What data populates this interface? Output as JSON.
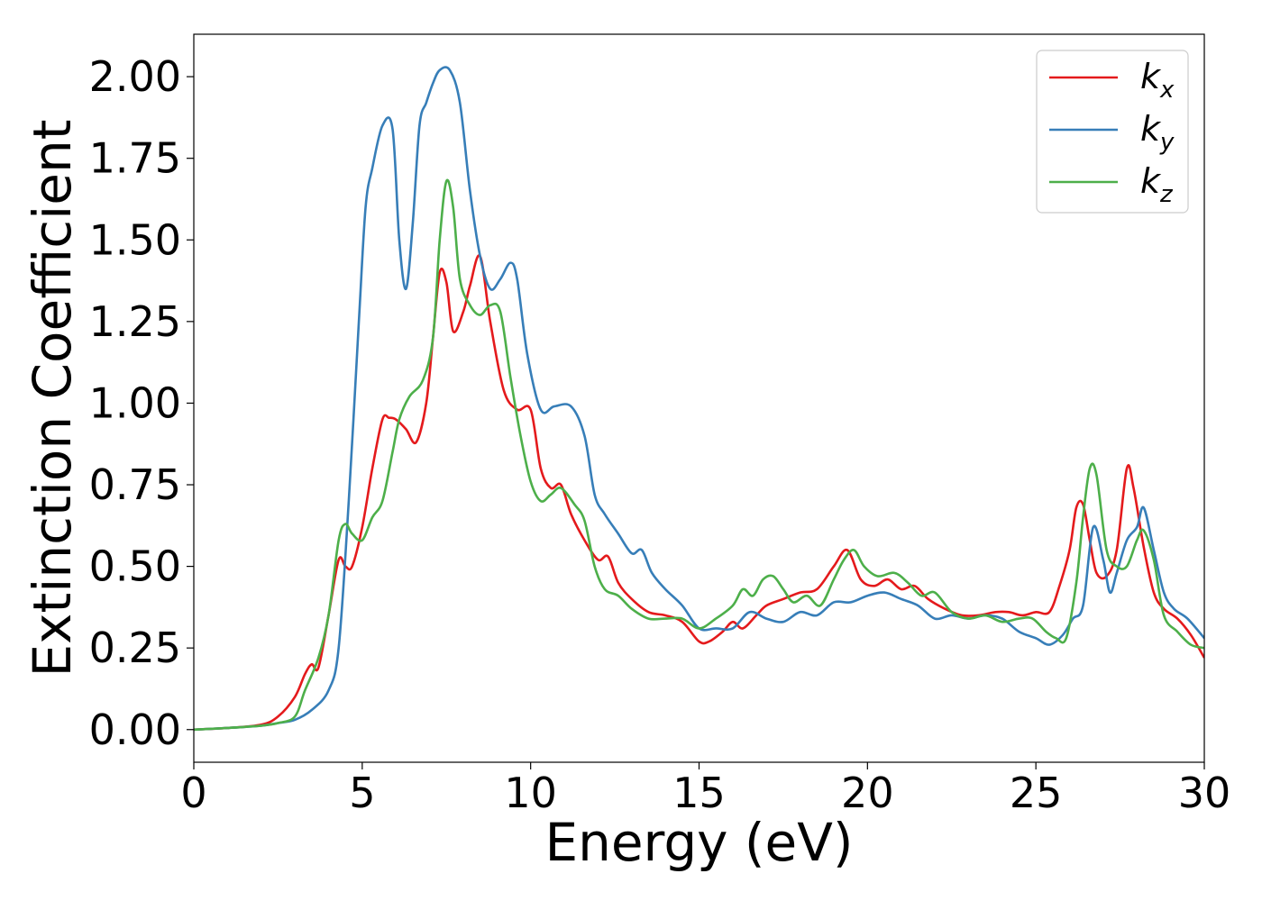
{
  "chart_data": {
    "type": "line",
    "xlabel": "Energy (eV)",
    "ylabel": "Extinction Coefficient",
    "xlim": [
      0,
      30
    ],
    "ylim": [
      -0.1,
      2.13
    ],
    "xticks": [
      "0",
      "5",
      "10",
      "15",
      "20",
      "25",
      "30"
    ],
    "yticks": [
      "0.00",
      "0.25",
      "0.50",
      "0.75",
      "1.00",
      "1.25",
      "1.50",
      "1.75",
      "2.00"
    ],
    "grid": false,
    "legend_position": "top-right",
    "series": [
      {
        "name": "k",
        "subscript": "x",
        "color": "#e41a1c",
        "x": [
          0,
          1,
          2,
          2.5,
          3,
          3.3,
          3.5,
          3.7,
          4,
          4.3,
          4.5,
          4.7,
          5,
          5.3,
          5.6,
          5.8,
          6,
          6.3,
          6.6,
          6.9,
          7.1,
          7.3,
          7.5,
          7.7,
          8,
          8.2,
          8.5,
          8.8,
          9.2,
          9.6,
          10,
          10.3,
          10.6,
          10.9,
          11.2,
          11.6,
          12,
          12.3,
          12.6,
          13,
          13.5,
          14,
          14.5,
          15,
          15.3,
          15.7,
          16,
          16.3,
          16.7,
          17,
          17.5,
          18,
          18.5,
          19,
          19.4,
          19.8,
          20.2,
          20.6,
          21,
          21.4,
          21.8,
          22.3,
          22.8,
          23.3,
          23.8,
          24.2,
          24.6,
          25,
          25.4,
          25.7,
          26,
          26.2,
          26.4,
          26.6,
          26.8,
          27.1,
          27.4,
          27.7,
          27.9,
          28.2,
          28.5,
          28.8,
          29.2,
          29.6,
          30
        ],
        "y": [
          0,
          0.005,
          0.015,
          0.04,
          0.1,
          0.17,
          0.2,
          0.19,
          0.35,
          0.52,
          0.5,
          0.5,
          0.62,
          0.8,
          0.95,
          0.955,
          0.95,
          0.92,
          0.88,
          1.0,
          1.2,
          1.4,
          1.37,
          1.22,
          1.28,
          1.36,
          1.45,
          1.25,
          1.04,
          0.98,
          0.98,
          0.8,
          0.74,
          0.75,
          0.66,
          0.58,
          0.52,
          0.53,
          0.45,
          0.4,
          0.36,
          0.35,
          0.33,
          0.27,
          0.27,
          0.3,
          0.33,
          0.31,
          0.35,
          0.38,
          0.4,
          0.42,
          0.43,
          0.5,
          0.55,
          0.46,
          0.44,
          0.46,
          0.43,
          0.44,
          0.4,
          0.37,
          0.35,
          0.35,
          0.36,
          0.36,
          0.35,
          0.36,
          0.36,
          0.44,
          0.55,
          0.68,
          0.69,
          0.58,
          0.48,
          0.47,
          0.55,
          0.8,
          0.74,
          0.56,
          0.42,
          0.37,
          0.34,
          0.29,
          0.22
        ]
      },
      {
        "name": "k",
        "subscript": "y",
        "color": "#377eb8",
        "x": [
          0,
          1,
          2,
          2.5,
          3,
          3.5,
          4,
          4.3,
          4.6,
          4.9,
          5.1,
          5.3,
          5.6,
          5.9,
          6.1,
          6.3,
          6.5,
          6.7,
          6.9,
          7.1,
          7.3,
          7.6,
          7.9,
          8.2,
          8.5,
          8.8,
          9.1,
          9.4,
          9.6,
          9.9,
          10.3,
          10.7,
          11.2,
          11.6,
          11.9,
          12.2,
          12.6,
          13,
          13.3,
          13.6,
          14,
          14.5,
          15,
          15.5,
          16,
          16.5,
          17,
          17.5,
          18,
          18.5,
          19,
          19.5,
          20,
          20.5,
          21,
          21.5,
          22,
          22.5,
          23,
          23.5,
          24,
          24.5,
          25,
          25.4,
          25.8,
          26.1,
          26.4,
          26.7,
          27,
          27.2,
          27.4,
          27.7,
          28,
          28.2,
          28.5,
          28.8,
          29.1,
          29.5,
          30
        ],
        "y": [
          0,
          0.005,
          0.012,
          0.02,
          0.03,
          0.06,
          0.12,
          0.25,
          0.7,
          1.25,
          1.6,
          1.72,
          1.85,
          1.84,
          1.5,
          1.35,
          1.55,
          1.85,
          1.92,
          1.98,
          2.02,
          2.02,
          1.92,
          1.65,
          1.45,
          1.35,
          1.38,
          1.43,
          1.38,
          1.15,
          0.98,
          0.99,
          0.99,
          0.9,
          0.72,
          0.66,
          0.6,
          0.54,
          0.55,
          0.48,
          0.43,
          0.38,
          0.31,
          0.31,
          0.31,
          0.36,
          0.34,
          0.33,
          0.36,
          0.35,
          0.39,
          0.39,
          0.41,
          0.42,
          0.4,
          0.38,
          0.34,
          0.35,
          0.34,
          0.35,
          0.34,
          0.3,
          0.28,
          0.26,
          0.29,
          0.34,
          0.38,
          0.62,
          0.52,
          0.42,
          0.48,
          0.58,
          0.62,
          0.68,
          0.55,
          0.42,
          0.37,
          0.34,
          0.28
        ]
      },
      {
        "name": "k",
        "subscript": "z",
        "color": "#4daf4a",
        "x": [
          0,
          1,
          2,
          2.5,
          3,
          3.3,
          3.7,
          4,
          4.3,
          4.5,
          4.7,
          5,
          5.3,
          5.6,
          5.9,
          6.1,
          6.4,
          6.8,
          7.1,
          7.3,
          7.5,
          7.7,
          7.9,
          8.2,
          8.5,
          8.8,
          9.1,
          9.4,
          9.7,
          10,
          10.3,
          10.6,
          10.9,
          11.3,
          11.6,
          11.9,
          12.2,
          12.6,
          13,
          13.5,
          14,
          14.5,
          15,
          15.5,
          16,
          16.3,
          16.6,
          16.9,
          17.2,
          17.5,
          17.8,
          18.2,
          18.6,
          19,
          19.3,
          19.6,
          19.9,
          20.3,
          20.8,
          21.2,
          21.6,
          22,
          22.5,
          23,
          23.5,
          24,
          24.5,
          24.9,
          25.3,
          25.6,
          25.9,
          26.2,
          26.4,
          26.6,
          26.8,
          27.1,
          27.4,
          27.7,
          28,
          28.2,
          28.5,
          28.8,
          29.2,
          29.6,
          30
        ],
        "y": [
          0,
          0.005,
          0.012,
          0.02,
          0.04,
          0.12,
          0.22,
          0.35,
          0.58,
          0.63,
          0.6,
          0.58,
          0.65,
          0.7,
          0.85,
          0.95,
          1.02,
          1.07,
          1.2,
          1.5,
          1.68,
          1.6,
          1.38,
          1.3,
          1.27,
          1.3,
          1.28,
          1.08,
          0.9,
          0.76,
          0.7,
          0.72,
          0.74,
          0.69,
          0.64,
          0.5,
          0.43,
          0.41,
          0.37,
          0.34,
          0.34,
          0.34,
          0.31,
          0.34,
          0.38,
          0.43,
          0.41,
          0.46,
          0.47,
          0.43,
          0.39,
          0.41,
          0.38,
          0.46,
          0.52,
          0.55,
          0.5,
          0.47,
          0.48,
          0.45,
          0.41,
          0.42,
          0.36,
          0.34,
          0.35,
          0.33,
          0.34,
          0.34,
          0.3,
          0.28,
          0.28,
          0.45,
          0.65,
          0.8,
          0.78,
          0.55,
          0.5,
          0.5,
          0.58,
          0.61,
          0.52,
          0.35,
          0.3,
          0.26,
          0.25
        ]
      }
    ]
  }
}
